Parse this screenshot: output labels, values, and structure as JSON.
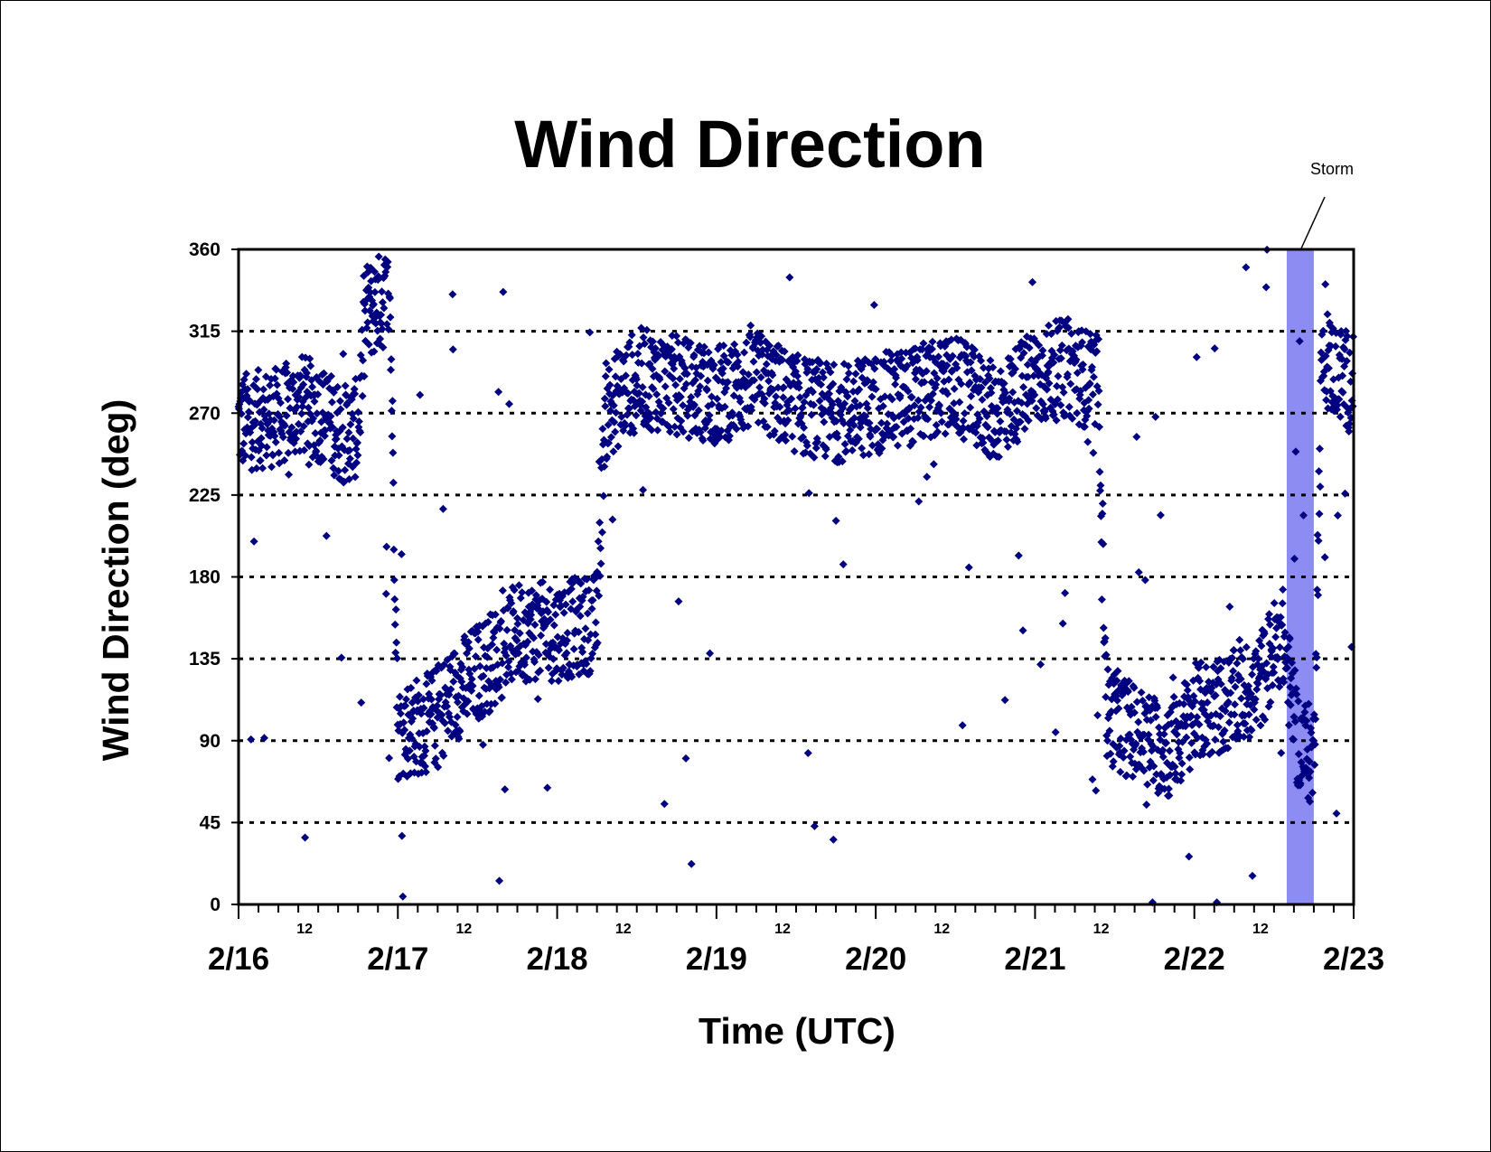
{
  "chart_data": {
    "type": "scatter",
    "title": "Wind Direction",
    "xlabel": "Time (UTC)",
    "ylabel": "Wind Direction (deg)",
    "x_range": [
      "2/16 00:00",
      "2/23 00:00"
    ],
    "ylim": [
      0,
      360
    ],
    "y_ticks": [
      "0",
      "45",
      "90",
      "135",
      "180",
      "225",
      "270",
      "315",
      "360"
    ],
    "x_major_ticks": [
      "2/16",
      "2/17",
      "2/18",
      "2/19",
      "2/20",
      "2/21",
      "2/22",
      "2/23"
    ],
    "x_minor_tick_label": "12",
    "grid": "horizontal dotted",
    "marker": "diamond",
    "series_color": "#000080",
    "storm_color": "#8c8cf2",
    "annotation": {
      "text": "Storm",
      "x_start_days": 6.58,
      "x_end_days": 6.75
    },
    "series": [
      {
        "x_unit": "days since 2/16 00:00",
        "y_unit": "deg",
        "trend_points": [
          {
            "x": 0.0,
            "y": 265
          },
          {
            "x": 0.25,
            "y": 268
          },
          {
            "x": 0.4,
            "y": 275
          },
          {
            "x": 0.55,
            "y": 268
          },
          {
            "x": 0.65,
            "y": 258
          },
          {
            "x": 0.75,
            "y": 262
          },
          {
            "x": 0.8,
            "y": 325
          },
          {
            "x": 0.95,
            "y": 335
          },
          {
            "x": 1.0,
            "y": 95
          },
          {
            "x": 1.2,
            "y": 100
          },
          {
            "x": 1.4,
            "y": 120
          },
          {
            "x": 1.6,
            "y": 135
          },
          {
            "x": 1.75,
            "y": 150
          },
          {
            "x": 2.0,
            "y": 150
          },
          {
            "x": 2.25,
            "y": 155
          },
          {
            "x": 2.3,
            "y": 270
          },
          {
            "x": 2.5,
            "y": 290
          },
          {
            "x": 2.75,
            "y": 285
          },
          {
            "x": 3.0,
            "y": 280
          },
          {
            "x": 3.25,
            "y": 288
          },
          {
            "x": 3.5,
            "y": 275
          },
          {
            "x": 3.75,
            "y": 270
          },
          {
            "x": 4.0,
            "y": 275
          },
          {
            "x": 4.25,
            "y": 280
          },
          {
            "x": 4.5,
            "y": 285
          },
          {
            "x": 4.75,
            "y": 270
          },
          {
            "x": 5.0,
            "y": 290
          },
          {
            "x": 5.2,
            "y": 295
          },
          {
            "x": 5.4,
            "y": 285
          },
          {
            "x": 5.45,
            "y": 105
          },
          {
            "x": 5.7,
            "y": 90
          },
          {
            "x": 5.85,
            "y": 85
          },
          {
            "x": 6.0,
            "y": 105
          },
          {
            "x": 6.2,
            "y": 110
          },
          {
            "x": 6.4,
            "y": 120
          },
          {
            "x": 6.55,
            "y": 150
          },
          {
            "x": 6.65,
            "y": 90
          },
          {
            "x": 6.75,
            "y": 80
          },
          {
            "x": 6.8,
            "y": 300
          },
          {
            "x": 7.0,
            "y": 285
          }
        ]
      }
    ]
  }
}
